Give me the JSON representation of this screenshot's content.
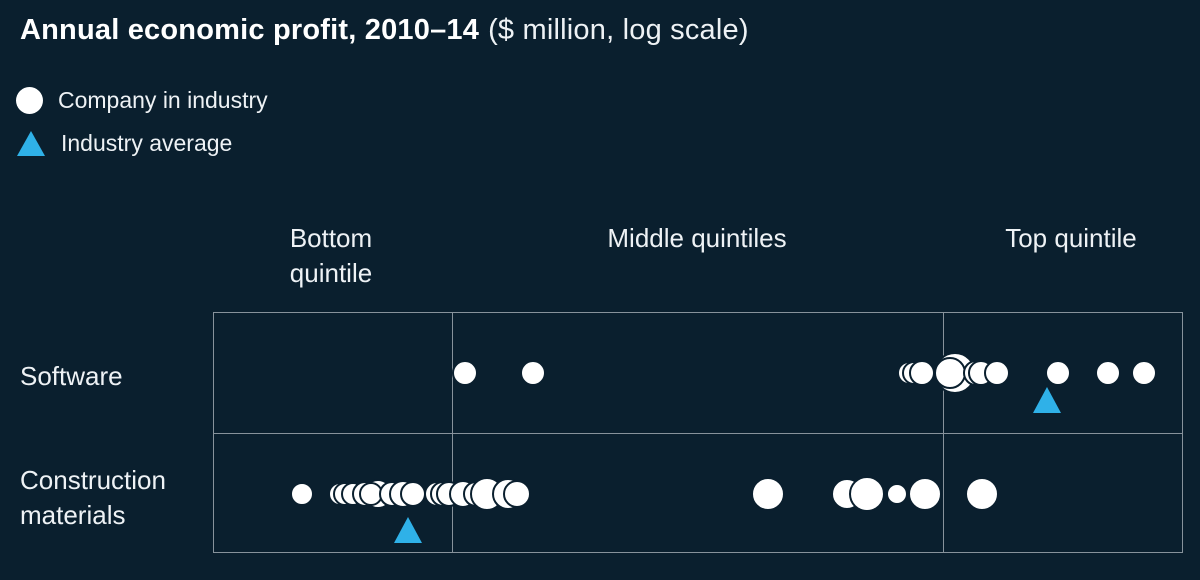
{
  "title": {
    "main": "Annual economic profit, 2010–14",
    "unit": "($ million, log scale)"
  },
  "legend": {
    "company": {
      "label": "Company in industry",
      "marker": "circle",
      "color": "#ffffff"
    },
    "average": {
      "label": "Industry average",
      "marker": "triangle",
      "color": "#2fb1e8"
    }
  },
  "colors": {
    "background": "#0a1f2e",
    "marker_white": "#ffffff",
    "average_blue": "#2fb1e8",
    "gridline_gray": "#87929b"
  },
  "chart_data": {
    "type": "scatter",
    "title": "Annual economic profit, 2010–14",
    "subtitle": "$ million, log scale",
    "x_axis": {
      "scale": "log",
      "numeric_ticks_visible": false,
      "bands": [
        "Bottom quintile",
        "Middle quintiles",
        "Top quintile"
      ],
      "band_boundaries_frac": [
        0.0,
        0.246,
        0.753,
        1.0
      ]
    },
    "legend_entries": [
      "Company in industry",
      "Industry average"
    ],
    "marker_note": "x = fraction of plot width (log-scale axis, unlabeled); r = marker radius in px; array order = draw order",
    "rows": [
      {
        "label": "Software",
        "companies": [
          {
            "x": 0.26,
            "r": 11
          },
          {
            "x": 0.33,
            "r": 11
          },
          {
            "x": 0.718,
            "r": 10
          },
          {
            "x": 0.723,
            "r": 10
          },
          {
            "x": 0.731,
            "r": 11
          },
          {
            "x": 0.765,
            "r": 19
          },
          {
            "x": 0.76,
            "r": 14
          },
          {
            "x": 0.787,
            "r": 11
          },
          {
            "x": 0.792,
            "r": 11
          },
          {
            "x": 0.808,
            "r": 11
          },
          {
            "x": 0.871,
            "r": 11
          },
          {
            "x": 0.923,
            "r": 11
          },
          {
            "x": 0.96,
            "r": 11
          }
        ],
        "industry_average_x": 0.86
      },
      {
        "label": "Construction materials",
        "companies": [
          {
            "x": 0.092,
            "r": 10
          },
          {
            "x": 0.131,
            "r": 10
          },
          {
            "x": 0.136,
            "r": 10
          },
          {
            "x": 0.144,
            "r": 10
          },
          {
            "x": 0.157,
            "r": 11
          },
          {
            "x": 0.17,
            "r": 13
          },
          {
            "x": 0.163,
            "r": 10
          },
          {
            "x": 0.185,
            "r": 11
          },
          {
            "x": 0.196,
            "r": 12
          },
          {
            "x": 0.206,
            "r": 11
          },
          {
            "x": 0.231,
            "r": 11
          },
          {
            "x": 0.237,
            "r": 11
          },
          {
            "x": 0.243,
            "r": 11
          },
          {
            "x": 0.258,
            "r": 12
          },
          {
            "x": 0.271,
            "r": 11
          },
          {
            "x": 0.282,
            "r": 15
          },
          {
            "x": 0.304,
            "r": 14
          },
          {
            "x": 0.313,
            "r": 12
          },
          {
            "x": 0.572,
            "r": 15
          },
          {
            "x": 0.654,
            "r": 14
          },
          {
            "x": 0.674,
            "r": 16
          },
          {
            "x": 0.705,
            "r": 9
          },
          {
            "x": 0.734,
            "r": 15
          },
          {
            "x": 0.793,
            "r": 15
          }
        ],
        "industry_average_x": 0.201
      }
    ]
  }
}
